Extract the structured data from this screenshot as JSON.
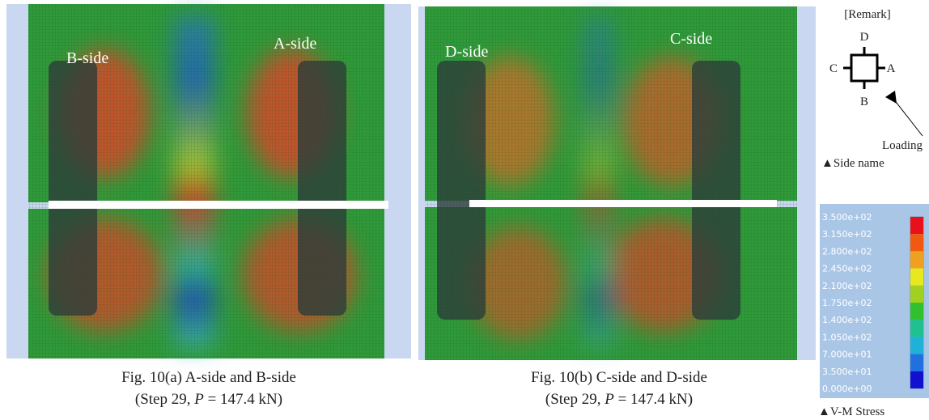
{
  "panel_a": {
    "labels": [
      "B-side",
      "A-side"
    ],
    "caption": {
      "line1": "Fig. 10(a) A-side and B-side",
      "line2_prefix": "(Step 29, ",
      "line2_var": "P",
      "line2_suffix": " = 147.4 kN)"
    }
  },
  "panel_b": {
    "labels": [
      "D-side",
      "C-side"
    ],
    "caption": {
      "line1": "Fig. 10(b) C-side and D-side",
      "line2_prefix": "(Step 29, ",
      "line2_var": "P",
      "line2_suffix": " = 147.4 kN)"
    }
  },
  "remark": {
    "title": "[Remark]",
    "sides": {
      "top": "D",
      "left": "C",
      "right": "A",
      "bottom": "B"
    },
    "loading": "Loading",
    "side_name": "▲Side name"
  },
  "legend": {
    "labels": [
      "3.500e+02",
      "3.150e+02",
      "2.800e+02",
      "2.450e+02",
      "2.100e+02",
      "1.750e+02",
      "1.400e+02",
      "1.050e+02",
      "7.000e+01",
      "3.500e+01",
      "0.000e+00"
    ],
    "caption": "▲V-M Stress"
  }
}
